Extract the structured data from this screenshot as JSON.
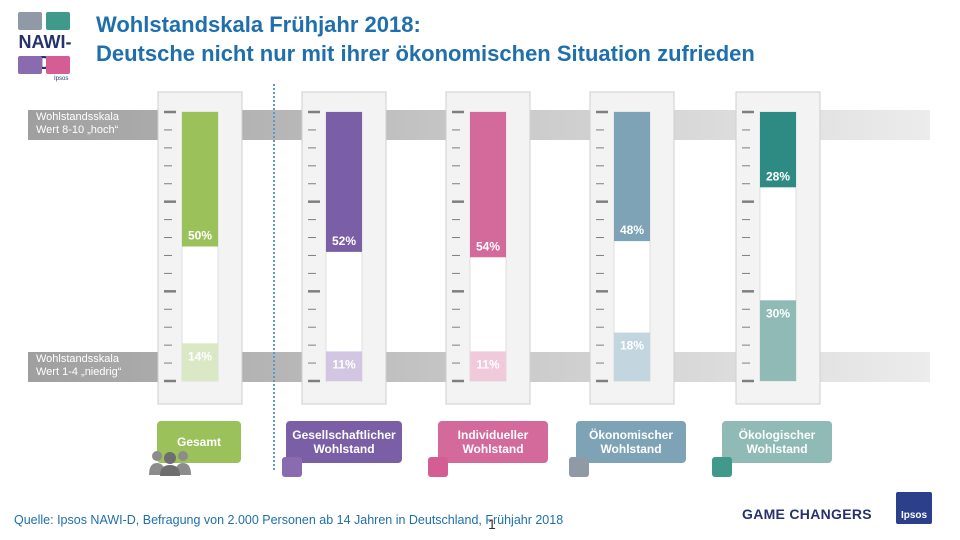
{
  "logo": {
    "name": "NAWI-D",
    "sub": "Ipsos"
  },
  "title": {
    "line1": "Wohlstandskala Frühjahr 2018:",
    "line2": "Deutsche nicht nur mit ihrer ökonomischen Situation zufrieden"
  },
  "bands": {
    "high": {
      "line1": "Wohlstandsskala",
      "line2": "Wert 8-10 „hoch“"
    },
    "low": {
      "line1": "Wohlstandsskala",
      "line2": "Wert 1-4 „niedrig“"
    }
  },
  "chart_data": {
    "type": "bar",
    "title": "Wohlstandskala Frühjahr 2018",
    "unit": "%",
    "ylim": [
      0,
      100
    ],
    "categories": [
      "Gesamt",
      "Gesellschaftlicher Wohlstand",
      "Individueller Wohlstand",
      "Ökonomischer Wohlstand",
      "Ökologischer Wohlstand"
    ],
    "series": [
      {
        "name": "Wohlstandsskala Wert 8-10 „hoch“",
        "values": [
          50,
          52,
          54,
          48,
          28
        ]
      },
      {
        "name": "Wohlstandsskala Wert 1-4 „niedrig“",
        "values": [
          14,
          11,
          11,
          18,
          30
        ]
      }
    ],
    "colors": [
      {
        "high": "#9bc15b",
        "low": "#dbe8c6"
      },
      {
        "high": "#7a5fa6",
        "low": "#d2c6e3"
      },
      {
        "high": "#d4699b",
        "low": "#f0c9da"
      },
      {
        "high": "#7ea3b6",
        "low": "#c3d6df"
      },
      {
        "high": "#2e8b84",
        "low": "#8fbab6"
      }
    ]
  },
  "categories": {
    "gesamt": {
      "label": "Gesamt",
      "color": "#9bc15b"
    },
    "gesellschaftlich": {
      "line1": "Gesellschaftlicher",
      "line2": "Wohlstand",
      "color": "#7a5fa6"
    },
    "individuell": {
      "line1": "Individueller",
      "line2": "Wohlstand",
      "color": "#d4699b"
    },
    "oekonomisch": {
      "line1": "Ökonomischer",
      "line2": "Wohlstand",
      "color": "#7ea3b6"
    },
    "oekologisch": {
      "line1": "Ökologischer",
      "line2": "Wohlstand",
      "color": "#8fbab6"
    }
  },
  "footer": {
    "source": "Quelle: Ipsos NAWI-D, Befragung von 2.000 Personen ab 14 Jahren in Deutschland, Frühjahr 2018",
    "page": "1",
    "tagline": "GAME CHANGERS",
    "brand": "Ipsos"
  }
}
